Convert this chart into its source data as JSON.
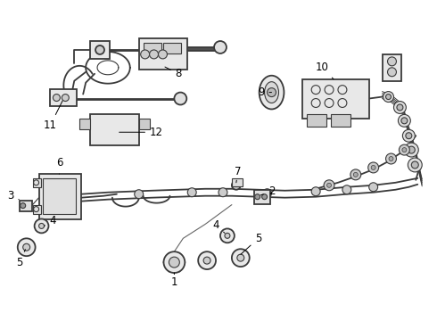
{
  "background_color": "#ffffff",
  "line_color": "#3a3a3a",
  "label_color": "#000000",
  "fig_w": 4.9,
  "fig_h": 3.6,
  "dpi": 100,
  "lw_thick": 2.0,
  "lw_med": 1.3,
  "lw_thin": 0.8,
  "label_fs": 8.5
}
